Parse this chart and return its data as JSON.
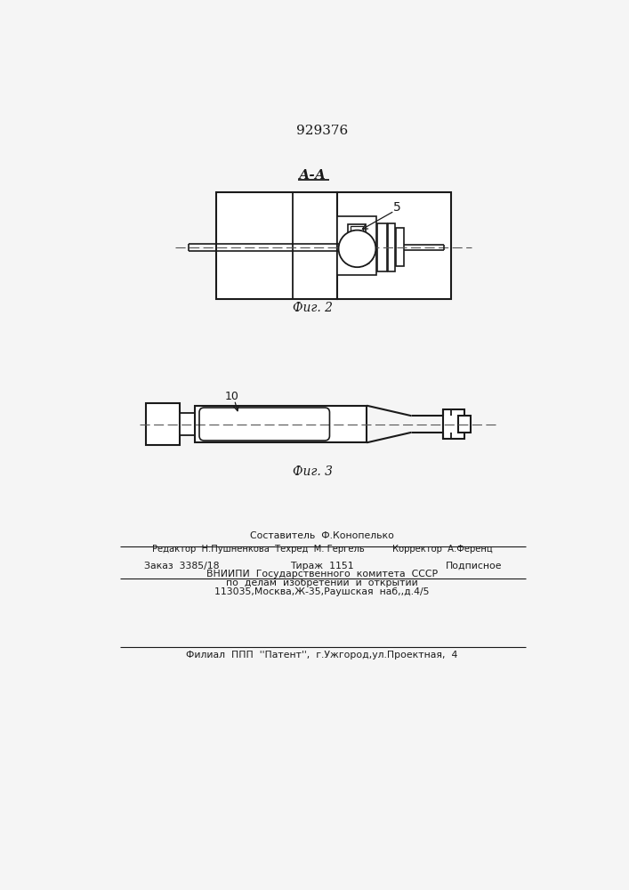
{
  "patent_number": "929376",
  "fig2_label": "А-А",
  "fig2_caption": "Фиг. 2",
  "fig3_caption": "Фиг. 3",
  "label_5": "5",
  "label_10": "10",
  "bg_color": "#f5f5f5",
  "line_color": "#1a1a1a",
  "footer_line0": "Составитель  Ф.Конопелько",
  "footer_line1": "Редактор  Н.Пушненкова  Техред  М. Гергель          Корректор  А.Ференц",
  "footer_line2_l": "Заказ  3385/18",
  "footer_line2_m": "Тираж  1151",
  "footer_line2_r": "Подписное",
  "footer_line3": "ВНИИПИ  Государственного  комитета  СССР",
  "footer_line4": "по  делам  изобретений  и  открытий",
  "footer_line5": "113035,Москва,Ж-35,Раушская  наб,,д.4/5",
  "footer_line6": "Филиал  ППП  ''Патент'',  г.Ужгород,ул.Проектная,  4"
}
